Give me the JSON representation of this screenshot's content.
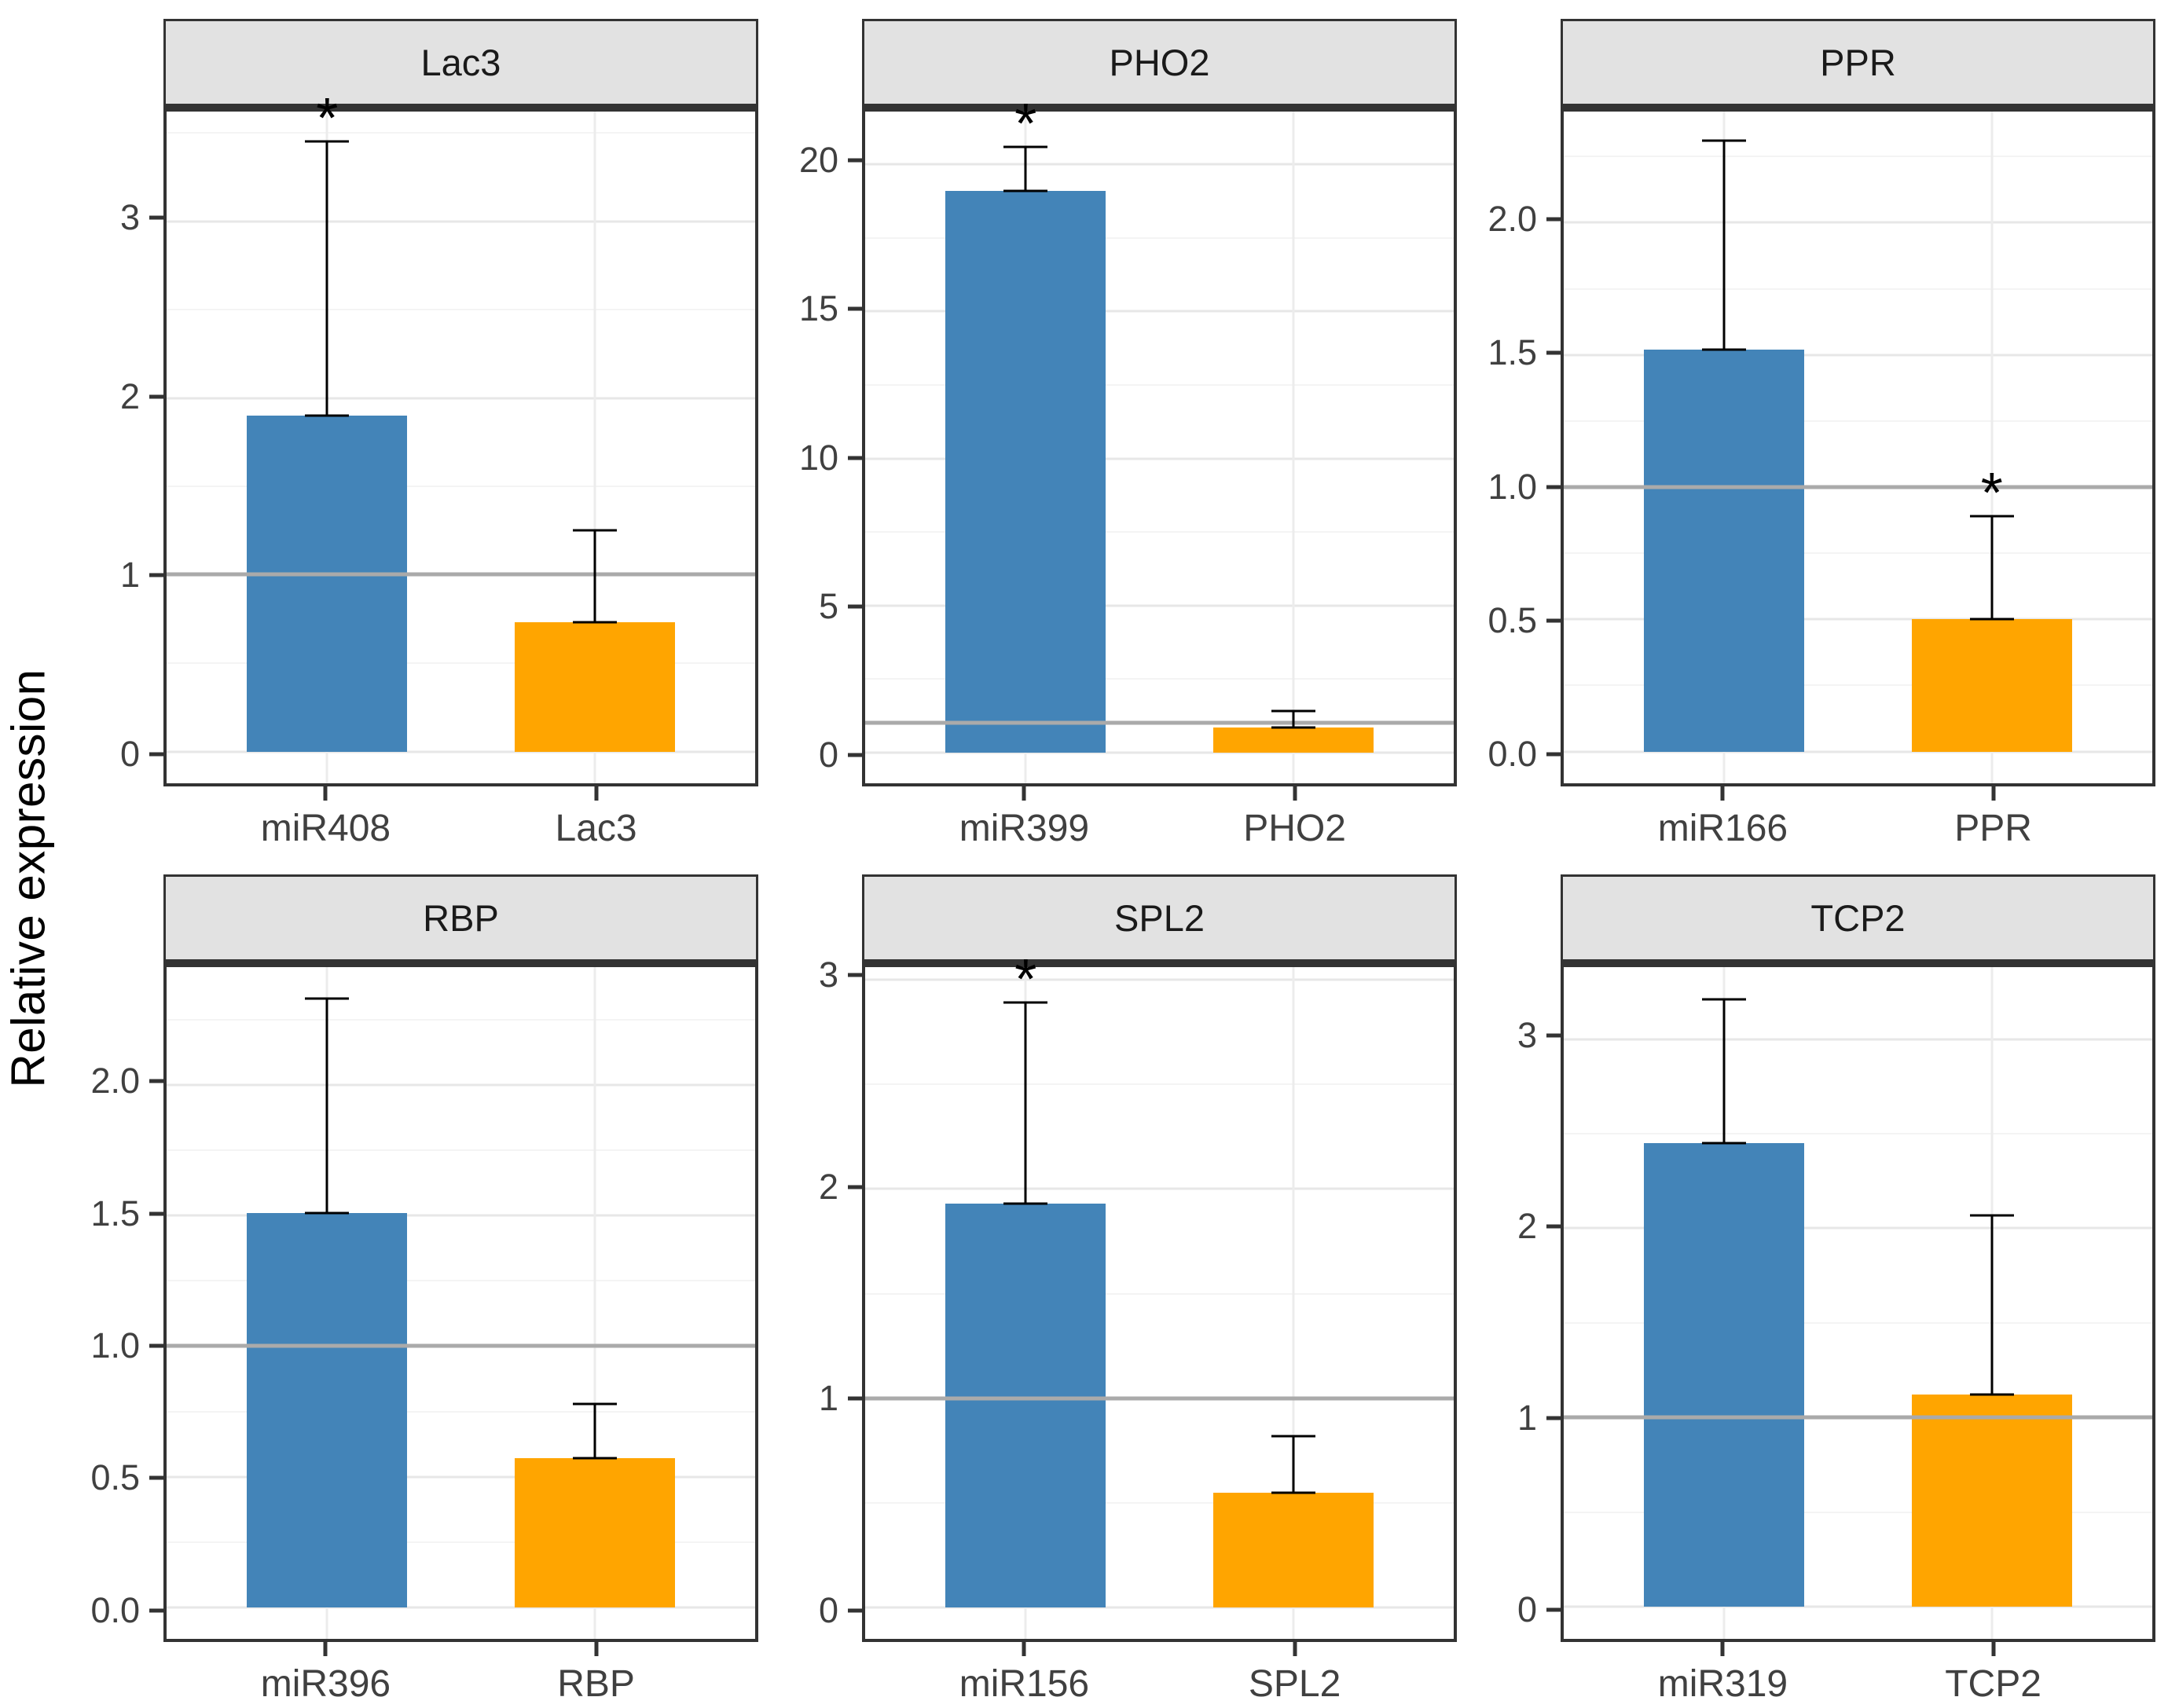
{
  "figure": {
    "ylabel": "Relative expression",
    "significance_marker": "*",
    "reference_value": 1,
    "colors": {
      "mirna_bar": "#4384B8",
      "target_bar": "#FFA500",
      "reference_line": "#AAAAAA",
      "error_bar": "#000000",
      "strip_background": "#E2E2E2",
      "strip_text": "#1A1A1A",
      "panel_border": "#333333",
      "grid_major": "#E7E7E7",
      "grid_minor": "#F4F4F4",
      "tick_label": "#404040"
    },
    "layout": {
      "rows": 2,
      "cols": 3,
      "legend": "none",
      "grid": "on"
    }
  },
  "chart_data": [
    {
      "type": "bar",
      "title": "Lac3",
      "categories": [
        "miR408",
        "Lac3"
      ],
      "values": [
        1.9,
        0.73
      ],
      "errors_upper": [
        3.45,
        1.25
      ],
      "significant": [
        true,
        false
      ],
      "yticks": [
        0,
        1,
        2,
        3
      ],
      "ytick_labels": [
        "0",
        "1",
        "2",
        "3"
      ],
      "ylim": [
        -0.18,
        3.62
      ],
      "reference_line": 1
    },
    {
      "type": "bar",
      "title": "PHO2",
      "categories": [
        "miR399",
        "PHO2"
      ],
      "values": [
        19.1,
        0.85
      ],
      "errors_upper": [
        20.6,
        1.4
      ],
      "significant": [
        true,
        false
      ],
      "yticks": [
        0,
        5,
        10,
        15,
        20
      ],
      "ytick_labels": [
        "0",
        "5",
        "10",
        "15",
        "20"
      ],
      "ylim": [
        -1.05,
        21.8
      ],
      "reference_line": 1
    },
    {
      "type": "bar",
      "title": "PPR",
      "categories": [
        "miR166",
        "PPR"
      ],
      "values": [
        1.52,
        0.5
      ],
      "errors_upper": [
        2.31,
        0.89
      ],
      "significant": [
        false,
        true
      ],
      "yticks": [
        0,
        0.5,
        1,
        1.5,
        2
      ],
      "ytick_labels": [
        "0.0",
        "0.5",
        "1.0",
        "1.5",
        "2.0"
      ],
      "ylim": [
        -0.12,
        2.42
      ],
      "reference_line": 1
    },
    {
      "type": "bar",
      "title": "RBP",
      "categories": [
        "miR396",
        "RBP"
      ],
      "values": [
        1.51,
        0.57
      ],
      "errors_upper": [
        2.33,
        0.78
      ],
      "significant": [
        false,
        false
      ],
      "yticks": [
        0,
        0.5,
        1,
        1.5,
        2
      ],
      "ytick_labels": [
        "0.0",
        "0.5",
        "1.0",
        "1.5",
        "2.0"
      ],
      "ylim": [
        -0.12,
        2.45
      ],
      "reference_line": 1
    },
    {
      "type": "bar",
      "title": "SPL2",
      "categories": [
        "miR156",
        "SPL2"
      ],
      "values": [
        1.93,
        0.55
      ],
      "errors_upper": [
        2.89,
        0.82
      ],
      "significant": [
        true,
        false
      ],
      "yticks": [
        0,
        1,
        2,
        3
      ],
      "ytick_labels": [
        "0",
        "1",
        "2",
        "3"
      ],
      "ylim": [
        -0.15,
        3.06
      ],
      "reference_line": 1
    },
    {
      "type": "bar",
      "title": "TCP2",
      "categories": [
        "miR319",
        "TCP2"
      ],
      "values": [
        2.45,
        1.12
      ],
      "errors_upper": [
        3.21,
        2.07
      ],
      "significant": [
        false,
        false
      ],
      "yticks": [
        0,
        1,
        2,
        3
      ],
      "ytick_labels": [
        "0",
        "1",
        "2",
        "3"
      ],
      "ylim": [
        -0.17,
        3.38
      ],
      "reference_line": 1
    }
  ]
}
